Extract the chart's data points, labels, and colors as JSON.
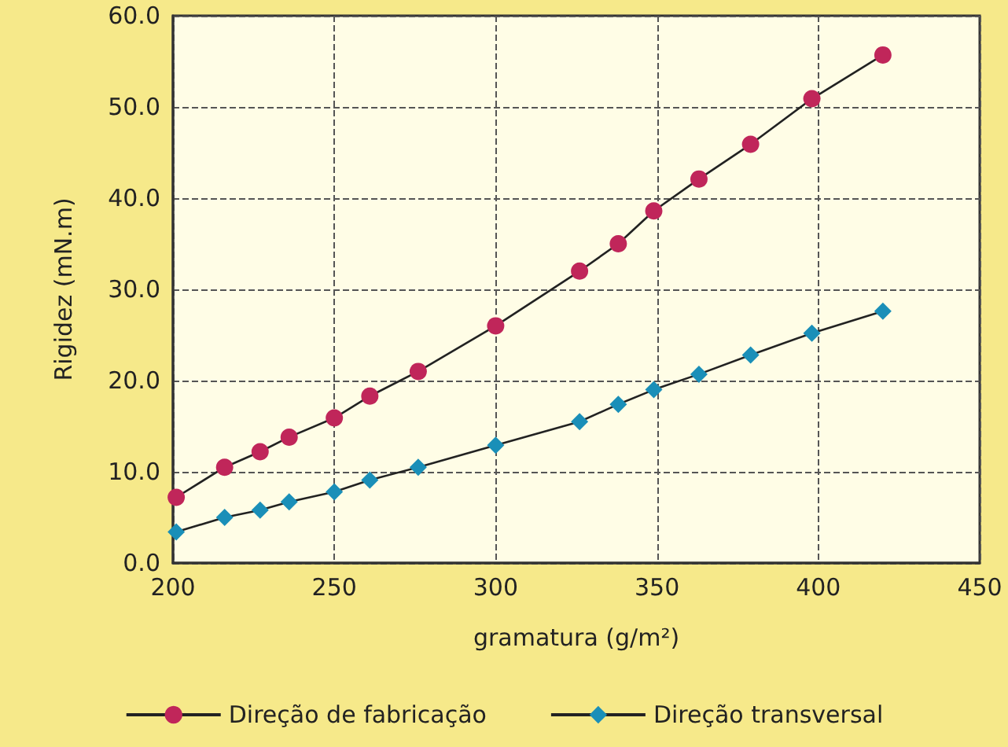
{
  "chart_data": {
    "type": "line",
    "xlabel": "gramatura (g/m²)",
    "ylabel": "Rigidez (mN.m)",
    "x": [
      201,
      216,
      227,
      236,
      250,
      261,
      276,
      300,
      326,
      338,
      349,
      363,
      379,
      398,
      420
    ],
    "series": [
      {
        "name": "Direção de fabricação",
        "color": "#c0265a",
        "marker": "circle",
        "values": [
          7.2,
          10.5,
          12.2,
          13.8,
          15.9,
          18.3,
          21.0,
          26.0,
          32.0,
          35.0,
          38.6,
          42.1,
          45.9,
          50.9,
          55.7
        ]
      },
      {
        "name": "Direção transversal",
        "color": "#1a8fb8",
        "marker": "diamond",
        "values": [
          3.4,
          5.0,
          5.8,
          6.7,
          7.8,
          9.1,
          10.5,
          12.9,
          15.5,
          17.4,
          19.0,
          20.7,
          22.8,
          25.2,
          27.6
        ]
      }
    ],
    "xlim": [
      200,
      450
    ],
    "xticks": [
      200,
      250,
      300,
      350,
      400,
      450
    ],
    "ylim": [
      0,
      60
    ],
    "yticks": [
      {
        "value": 0,
        "label": "0.0"
      },
      {
        "value": 10,
        "label": "10.0"
      },
      {
        "value": 20,
        "label": "20.0"
      },
      {
        "value": 30,
        "label": "30.0"
      },
      {
        "value": 40,
        "label": "40.0"
      },
      {
        "value": 50,
        "label": "50.0"
      },
      {
        "value": 60,
        "label": "60.0"
      }
    ],
    "grid": true,
    "legend": "bottom",
    "line_style": "solid"
  }
}
